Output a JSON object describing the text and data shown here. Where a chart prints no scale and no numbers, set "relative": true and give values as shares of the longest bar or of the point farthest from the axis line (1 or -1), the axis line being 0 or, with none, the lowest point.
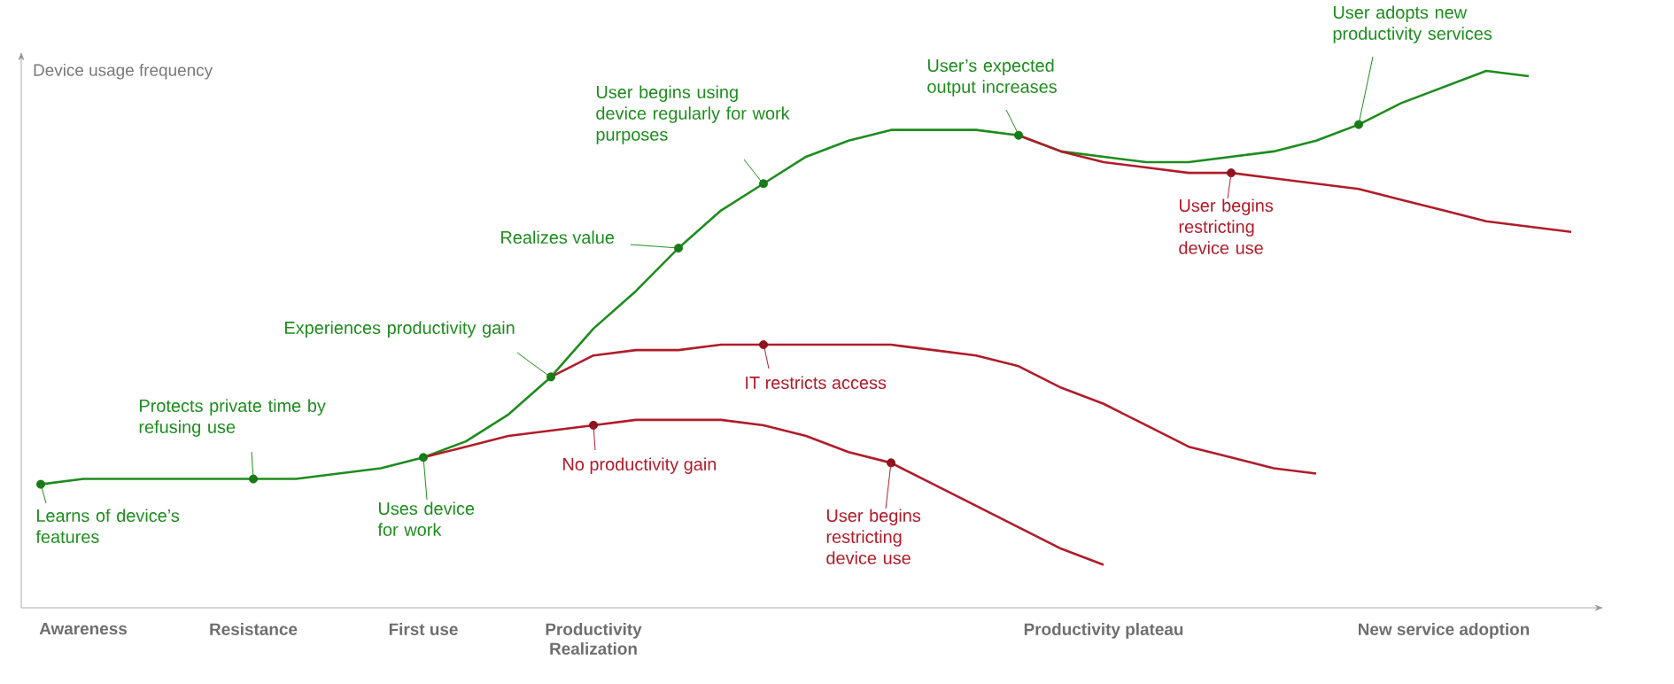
{
  "chart_data": {
    "type": "line",
    "relative": true,
    "ylabel": "Device usage frequency",
    "categories": [
      null,
      "Awareness",
      null,
      null,
      null,
      "Resistance",
      null,
      null,
      null,
      "First use",
      null,
      null,
      null,
      "Productivity Realization",
      null,
      null,
      null,
      null,
      null,
      null,
      null,
      null,
      null,
      null,
      null,
      "Productivity plateau",
      null,
      null,
      null,
      null,
      null,
      null,
      null,
      "New service adoption",
      null,
      null,
      null
    ],
    "series": [
      {
        "color": "#1e8c1e",
        "values": [
          0.23,
          0.24,
          0.24,
          0.24,
          0.24,
          0.24,
          0.24,
          0.25,
          0.26,
          0.28,
          0.31,
          0.36,
          0.43,
          0.52,
          0.59,
          0.67,
          0.74,
          0.79,
          0.84,
          0.87,
          0.89,
          0.89,
          0.89,
          0.88,
          0.85,
          0.84,
          0.83,
          0.83,
          0.84,
          0.85,
          0.87,
          0.9,
          0.94,
          0.97,
          1,
          0.99,
          null
        ]
      },
      {
        "color": "#b01c2a",
        "values": [
          null,
          null,
          null,
          null,
          null,
          null,
          null,
          null,
          null,
          0.28,
          0.3,
          0.32,
          0.33,
          0.34,
          0.35,
          0.35,
          0.35,
          0.34,
          0.32,
          0.29,
          0.27,
          0.23,
          0.19,
          0.15,
          0.11,
          0.08,
          null,
          null,
          null,
          null,
          null,
          null,
          null,
          null,
          null,
          null,
          null
        ]
      },
      {
        "color": "#b01c2a",
        "values": [
          null,
          null,
          null,
          null,
          null,
          null,
          null,
          null,
          null,
          null,
          null,
          null,
          0.43,
          0.47,
          0.48,
          0.48,
          0.49,
          0.49,
          0.49,
          0.49,
          0.49,
          0.48,
          0.47,
          0.45,
          0.41,
          0.38,
          0.34,
          0.3,
          0.28,
          0.26,
          0.25,
          null,
          null,
          null,
          null,
          null,
          null
        ]
      },
      {
        "color": "#b01c2a",
        "values": [
          null,
          null,
          null,
          null,
          null,
          null,
          null,
          null,
          null,
          null,
          null,
          null,
          null,
          null,
          null,
          null,
          null,
          null,
          null,
          null,
          null,
          null,
          null,
          0.88,
          0.85,
          0.83,
          0.82,
          0.81,
          0.81,
          0.8,
          0.79,
          0.78,
          0.76,
          0.74,
          0.72,
          0.71,
          0.7
        ]
      },
      {
        "type": "scatter",
        "color": "#177a17",
        "values": [
          0.23,
          null,
          null,
          null,
          null,
          0.24,
          null,
          null,
          null,
          0.28,
          null,
          null,
          0.43,
          null,
          null,
          0.67,
          null,
          0.79,
          null,
          null,
          null,
          null,
          null,
          0.88,
          null,
          null,
          null,
          null,
          null,
          null,
          null,
          0.9,
          null,
          null,
          null,
          null,
          null
        ]
      },
      {
        "type": "scatter",
        "color": "#8c1420",
        "values": [
          null,
          null,
          null,
          null,
          null,
          null,
          null,
          null,
          null,
          null,
          null,
          null,
          null,
          0.34,
          null,
          null,
          null,
          0.49,
          null,
          null,
          0.27,
          null,
          null,
          null,
          null,
          null,
          null,
          null,
          0.81,
          null,
          null,
          null,
          null,
          null,
          null,
          null,
          null
        ]
      }
    ],
    "annotations": [
      "Learns of device’s features",
      "Protects private time by refusing use",
      "Uses device for work",
      "Experiences productivity gain",
      "Realizes value",
      "User begins using device regularly for work purposes",
      "User’s expected output increases",
      "User adopts new productivity services",
      "No productivity gain",
      "IT restricts access",
      "User begins restricting device use",
      "User begins restricting device use"
    ]
  }
}
